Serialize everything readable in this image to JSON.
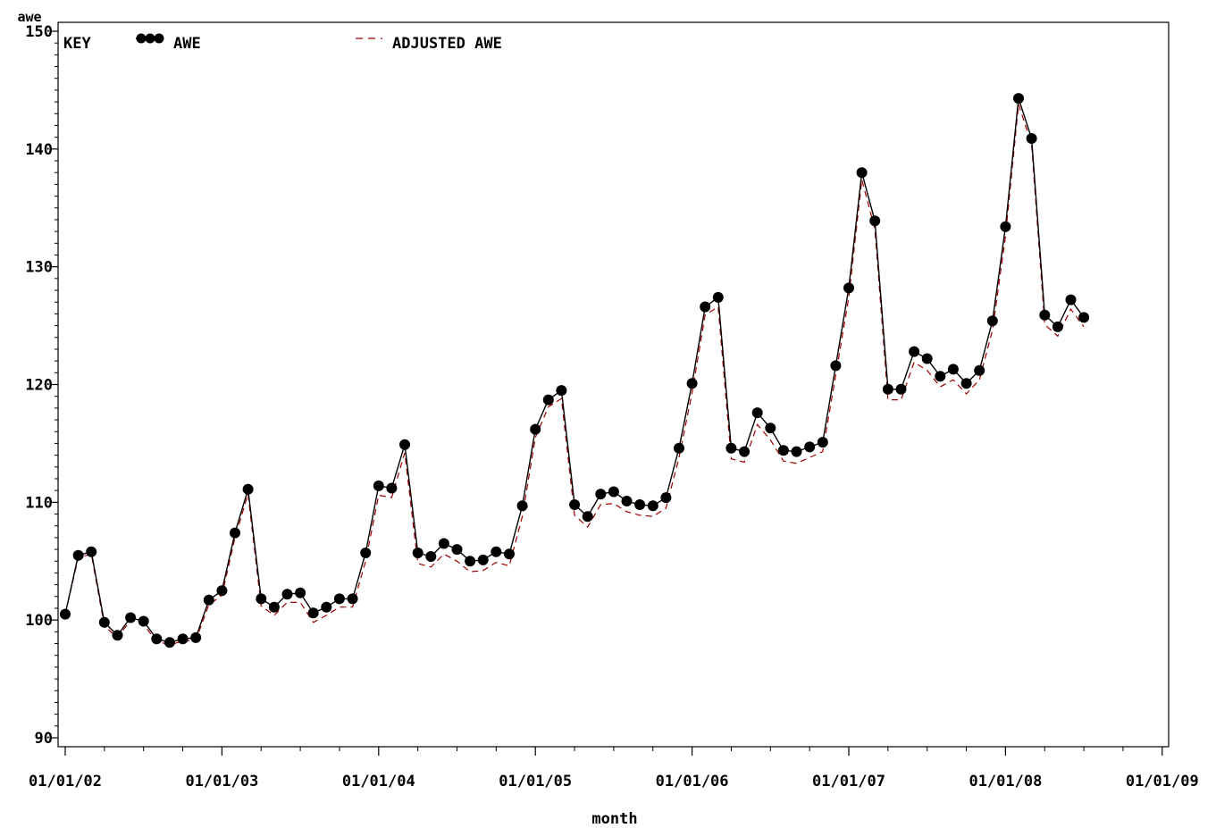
{
  "chart_data": {
    "type": "line",
    "ylabel": "awe",
    "xlabel": "month",
    "ylim": [
      90,
      150
    ],
    "y_ticks": [
      90,
      100,
      110,
      120,
      130,
      140,
      150
    ],
    "x_tick_labels": [
      "01/01/02",
      "01/01/03",
      "01/01/04",
      "01/01/05",
      "01/01/06",
      "01/01/07",
      "01/01/08",
      "01/01/09"
    ],
    "legend": {
      "title": "KEY",
      "placement": "top-left",
      "entries": [
        "AWE",
        "ADJUSTED AWE"
      ]
    },
    "colors": {
      "awe": "#000000",
      "adjusted": "#a00000"
    },
    "x_start_month": "2002-01",
    "series": [
      {
        "name": "AWE",
        "style": "solid line with dots",
        "values": [
          100.5,
          105.5,
          105.8,
          99.8,
          98.7,
          100.2,
          99.9,
          98.4,
          98.1,
          98.4,
          98.5,
          101.7,
          102.5,
          107.4,
          111.1,
          101.8,
          101.1,
          102.2,
          102.3,
          100.6,
          101.1,
          101.8,
          101.8,
          105.7,
          111.4,
          111.2,
          114.9,
          105.7,
          105.4,
          106.5,
          106.0,
          105.0,
          105.1,
          105.8,
          105.6,
          109.7,
          116.2,
          118.7,
          119.5,
          109.8,
          108.8,
          110.7,
          110.9,
          110.1,
          109.8,
          109.7,
          110.4,
          114.6,
          120.1,
          126.6,
          127.4,
          114.6,
          114.3,
          117.6,
          116.3,
          114.4,
          114.3,
          114.7,
          115.1,
          121.6,
          128.2,
          138.0,
          133.9,
          119.6,
          119.6,
          122.8,
          122.2,
          120.7,
          121.3,
          120.1,
          121.2,
          125.4,
          133.4,
          144.3,
          140.9,
          125.9,
          124.9,
          127.2,
          125.7
        ]
      },
      {
        "name": "ADJUSTED AWE",
        "style": "dashed line",
        "values": [
          100.5,
          105.3,
          105.6,
          99.5,
          98.5,
          100.0,
          99.6,
          98.2,
          97.9,
          98.2,
          98.3,
          101.3,
          102.1,
          107.0,
          110.7,
          101.2,
          100.4,
          101.5,
          101.5,
          99.8,
          100.4,
          101.1,
          101.1,
          105.0,
          110.6,
          110.4,
          114.2,
          104.8,
          104.5,
          105.6,
          105.0,
          104.1,
          104.2,
          104.9,
          104.6,
          108.8,
          115.5,
          118.1,
          118.8,
          108.9,
          107.9,
          109.8,
          109.9,
          109.2,
          108.9,
          108.8,
          109.5,
          113.8,
          119.3,
          125.9,
          126.6,
          113.7,
          113.4,
          116.6,
          115.3,
          113.5,
          113.3,
          113.8,
          114.3,
          120.8,
          127.4,
          137.4,
          133.2,
          118.7,
          118.7,
          121.9,
          121.2,
          119.8,
          120.4,
          119.2,
          120.4,
          124.6,
          132.6,
          143.8,
          140.4,
          125.1,
          124.1,
          126.4,
          124.9
        ]
      }
    ]
  }
}
